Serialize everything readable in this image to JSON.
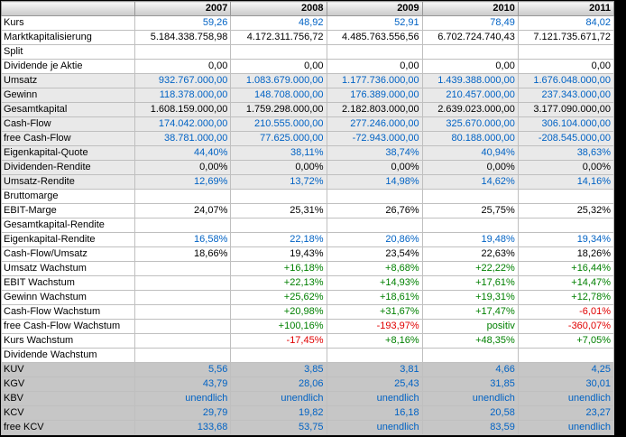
{
  "table": {
    "corner": "",
    "years": [
      "2007",
      "2008",
      "2009",
      "2010",
      "2011"
    ],
    "colors": {
      "blue": "#0062c4",
      "black": "#000000",
      "green": "#008000",
      "red": "#e00000"
    },
    "rows": [
      {
        "label": "Kurs",
        "bg": "white",
        "values": [
          "59,26",
          "48,92",
          "52,91",
          "78,49",
          "84,02"
        ],
        "colors": [
          "blue",
          "blue",
          "blue",
          "blue",
          "blue"
        ]
      },
      {
        "label": "Marktkapitalisierung",
        "bg": "white",
        "values": [
          "5.184.338.758,98",
          "4.172.311.756,72",
          "4.485.763.556,56",
          "6.702.724.740,43",
          "7.121.735.671,72"
        ],
        "colors": [
          "black",
          "black",
          "black",
          "black",
          "black"
        ]
      },
      {
        "label": "Split",
        "bg": "white",
        "values": [
          "",
          "",
          "",
          "",
          ""
        ],
        "colors": [
          "black",
          "black",
          "black",
          "black",
          "black"
        ]
      },
      {
        "label": "Dividende je Aktie",
        "bg": "white",
        "values": [
          "0,00",
          "0,00",
          "0,00",
          "0,00",
          "0,00"
        ],
        "colors": [
          "black",
          "black",
          "black",
          "black",
          "black"
        ]
      },
      {
        "label": "Umsatz",
        "bg": "light",
        "values": [
          "932.767.000,00",
          "1.083.679.000,00",
          "1.177.736.000,00",
          "1.439.388.000,00",
          "1.676.048.000,00"
        ],
        "colors": [
          "blue",
          "blue",
          "blue",
          "blue",
          "blue"
        ]
      },
      {
        "label": "Gewinn",
        "bg": "light",
        "values": [
          "118.378.000,00",
          "148.708.000,00",
          "176.389.000,00",
          "210.457.000,00",
          "237.343.000,00"
        ],
        "colors": [
          "blue",
          "blue",
          "blue",
          "blue",
          "blue"
        ]
      },
      {
        "label": "Gesamtkapital",
        "bg": "light",
        "values": [
          "1.608.159.000,00",
          "1.759.298.000,00",
          "2.182.803.000,00",
          "2.639.023.000,00",
          "3.177.090.000,00"
        ],
        "colors": [
          "black",
          "black",
          "black",
          "black",
          "black"
        ]
      },
      {
        "label": "Cash-Flow",
        "bg": "light",
        "values": [
          "174.042.000,00",
          "210.555.000,00",
          "277.246.000,00",
          "325.670.000,00",
          "306.104.000,00"
        ],
        "colors": [
          "blue",
          "blue",
          "blue",
          "blue",
          "blue"
        ]
      },
      {
        "label": "free Cash-Flow",
        "bg": "light",
        "values": [
          "38.781.000,00",
          "77.625.000,00",
          "-72.943.000,00",
          "80.188.000,00",
          "-208.545.000,00"
        ],
        "colors": [
          "blue",
          "blue",
          "blue",
          "blue",
          "blue"
        ]
      },
      {
        "label": "Eigenkapital-Quote",
        "bg": "light",
        "values": [
          "44,40%",
          "38,11%",
          "38,74%",
          "40,94%",
          "38,63%"
        ],
        "colors": [
          "blue",
          "blue",
          "blue",
          "blue",
          "blue"
        ]
      },
      {
        "label": "Dividenden-Rendite",
        "bg": "light",
        "values": [
          "0,00%",
          "0,00%",
          "0,00%",
          "0,00%",
          "0,00%"
        ],
        "colors": [
          "black",
          "black",
          "black",
          "black",
          "black"
        ]
      },
      {
        "label": "Umsatz-Rendite",
        "bg": "light",
        "values": [
          "12,69%",
          "13,72%",
          "14,98%",
          "14,62%",
          "14,16%"
        ],
        "colors": [
          "blue",
          "blue",
          "blue",
          "blue",
          "blue"
        ]
      },
      {
        "label": "Bruttomarge",
        "bg": "white",
        "values": [
          "",
          "",
          "",
          "",
          ""
        ],
        "colors": [
          "black",
          "black",
          "black",
          "black",
          "black"
        ]
      },
      {
        "label": "EBIT-Marge",
        "bg": "white",
        "values": [
          "24,07%",
          "25,31%",
          "26,76%",
          "25,75%",
          "25,32%"
        ],
        "colors": [
          "black",
          "black",
          "black",
          "black",
          "black"
        ]
      },
      {
        "label": "Gesamtkapital-Rendite",
        "bg": "white",
        "values": [
          "",
          "",
          "",
          "",
          ""
        ],
        "colors": [
          "black",
          "black",
          "black",
          "black",
          "black"
        ]
      },
      {
        "label": "Eigenkapital-Rendite",
        "bg": "white",
        "values": [
          "16,58%",
          "22,18%",
          "20,86%",
          "19,48%",
          "19,34%"
        ],
        "colors": [
          "blue",
          "blue",
          "blue",
          "blue",
          "blue"
        ]
      },
      {
        "label": "Cash-Flow/Umsatz",
        "bg": "white",
        "values": [
          "18,66%",
          "19,43%",
          "23,54%",
          "22,63%",
          "18,26%"
        ],
        "colors": [
          "black",
          "black",
          "black",
          "black",
          "black"
        ]
      },
      {
        "label": "Umsatz Wachstum",
        "bg": "white",
        "values": [
          "",
          "+16,18%",
          "+8,68%",
          "+22,22%",
          "+16,44%"
        ],
        "colors": [
          "black",
          "green",
          "green",
          "green",
          "green"
        ]
      },
      {
        "label": "EBIT Wachstum",
        "bg": "white",
        "values": [
          "",
          "+22,13%",
          "+14,93%",
          "+17,61%",
          "+14,47%"
        ],
        "colors": [
          "black",
          "green",
          "green",
          "green",
          "green"
        ]
      },
      {
        "label": "Gewinn Wachstum",
        "bg": "white",
        "values": [
          "",
          "+25,62%",
          "+18,61%",
          "+19,31%",
          "+12,78%"
        ],
        "colors": [
          "black",
          "green",
          "green",
          "green",
          "green"
        ]
      },
      {
        "label": "Cash-Flow Wachstum",
        "bg": "white",
        "values": [
          "",
          "+20,98%",
          "+31,67%",
          "+17,47%",
          "-6,01%"
        ],
        "colors": [
          "black",
          "green",
          "green",
          "green",
          "red"
        ]
      },
      {
        "label": "free Cash-Flow Wachstum",
        "bg": "white",
        "values": [
          "",
          "+100,16%",
          "-193,97%",
          "positiv",
          "-360,07%"
        ],
        "colors": [
          "black",
          "green",
          "red",
          "green",
          "red"
        ]
      },
      {
        "label": "Kurs Wachstum",
        "bg": "white",
        "values": [
          "",
          "-17,45%",
          "+8,16%",
          "+48,35%",
          "+7,05%"
        ],
        "colors": [
          "black",
          "red",
          "green",
          "green",
          "green"
        ]
      },
      {
        "label": "Dividende Wachstum",
        "bg": "white",
        "values": [
          "",
          "",
          "",
          "",
          ""
        ],
        "colors": [
          "black",
          "black",
          "black",
          "black",
          "black"
        ]
      },
      {
        "label": "KUV",
        "bg": "gray",
        "values": [
          "5,56",
          "3,85",
          "3,81",
          "4,66",
          "4,25"
        ],
        "colors": [
          "blue",
          "blue",
          "blue",
          "blue",
          "blue"
        ]
      },
      {
        "label": "KGV",
        "bg": "gray",
        "values": [
          "43,79",
          "28,06",
          "25,43",
          "31,85",
          "30,01"
        ],
        "colors": [
          "blue",
          "blue",
          "blue",
          "blue",
          "blue"
        ]
      },
      {
        "label": "KBV",
        "bg": "gray",
        "values": [
          "unendlich",
          "unendlich",
          "unendlich",
          "unendlich",
          "unendlich"
        ],
        "colors": [
          "blue",
          "blue",
          "blue",
          "blue",
          "blue"
        ]
      },
      {
        "label": "KCV",
        "bg": "gray",
        "values": [
          "29,79",
          "19,82",
          "16,18",
          "20,58",
          "23,27"
        ],
        "colors": [
          "blue",
          "blue",
          "blue",
          "blue",
          "blue"
        ]
      },
      {
        "label": "free KCV",
        "bg": "gray",
        "values": [
          "133,68",
          "53,75",
          "unendlich",
          "83,59",
          "unendlich"
        ],
        "colors": [
          "blue",
          "blue",
          "blue",
          "blue",
          "blue"
        ]
      }
    ]
  }
}
